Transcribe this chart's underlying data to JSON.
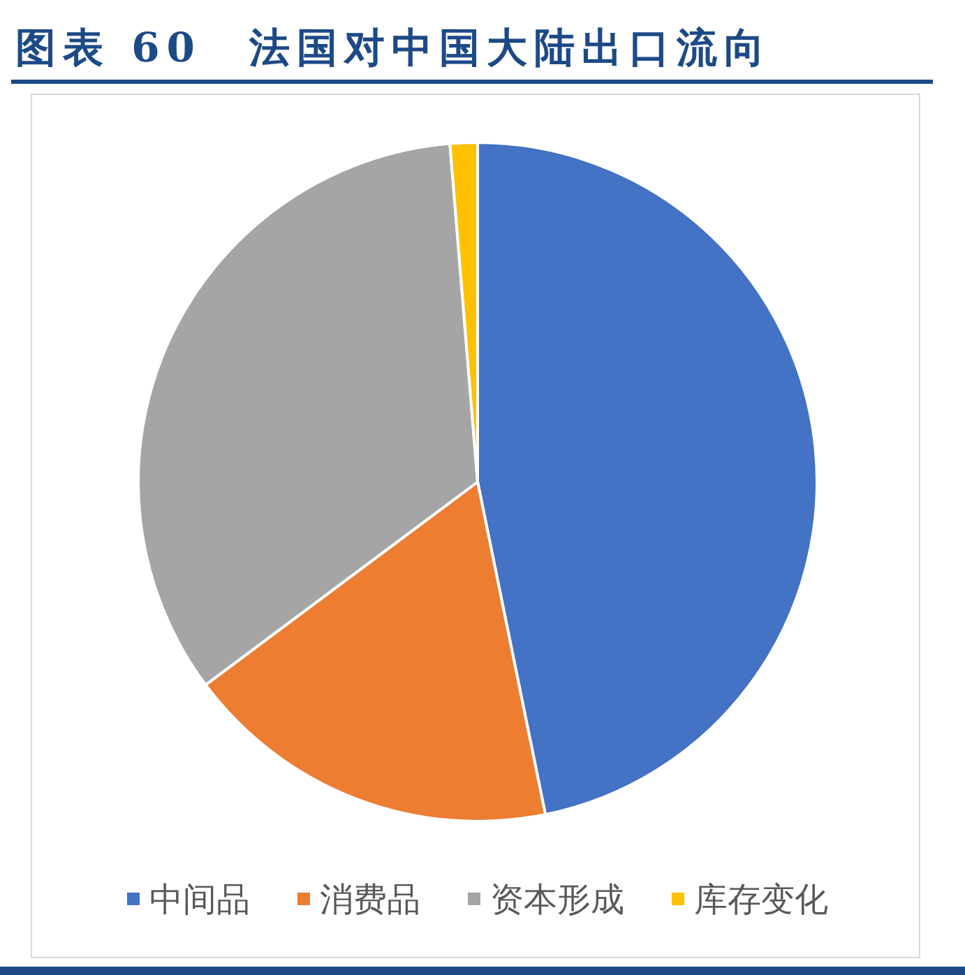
{
  "chart_data": {
    "type": "pie",
    "title": "图表 60　法国对中国大陆出口流向",
    "categories": [
      "中间品",
      "消费品",
      "资本形成",
      "库存变化"
    ],
    "values": [
      46.8,
      18.0,
      33.9,
      1.3
    ],
    "colors": [
      "#4472c4",
      "#ed7d31",
      "#a5a5a5",
      "#ffc000"
    ],
    "legend": "bottom"
  }
}
